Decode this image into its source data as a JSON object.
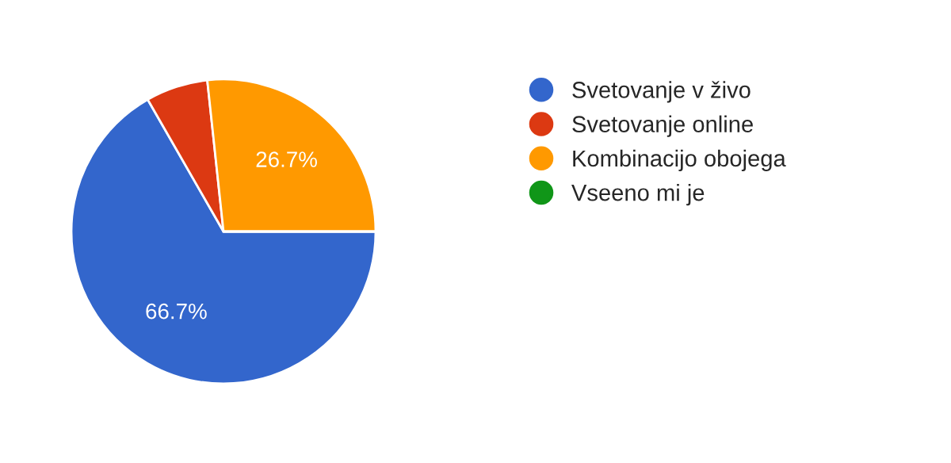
{
  "chart_data": {
    "type": "pie",
    "categories": [
      "Svetovanje v živo",
      "Svetovanje online",
      "Kombinacijo obojega",
      "Vseeno mi je"
    ],
    "values": [
      66.7,
      6.6,
      26.7,
      0
    ],
    "colors": [
      "#3366cc",
      "#dc3912",
      "#ff9900",
      "#109618"
    ],
    "value_labels": [
      "66.7%",
      null,
      "26.7%",
      null
    ],
    "legend": "right"
  }
}
